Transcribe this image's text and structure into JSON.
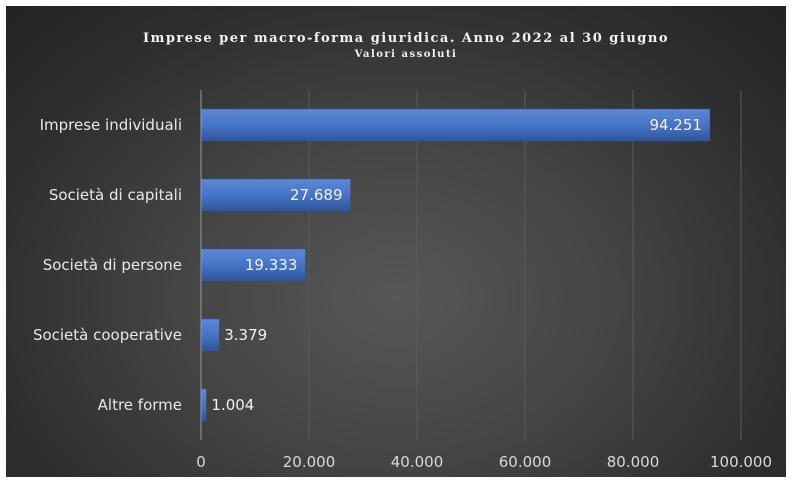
{
  "chart_data": {
    "type": "bar",
    "orientation": "horizontal",
    "title": "Imprese per macro-forma giuridica. Anno 2022 al 30 giugno",
    "subtitle": "Valori assoluti",
    "categories": [
      "Imprese individuali",
      "Società di capitali",
      "Società di persone",
      "Società cooperative",
      "Altre forme"
    ],
    "values": [
      94251,
      27689,
      19333,
      3379,
      1004
    ],
    "value_labels": [
      "94.251",
      "27.689",
      "19.333",
      "3.379",
      "1.004"
    ],
    "xlim": [
      0,
      100000
    ],
    "x_ticks": [
      0,
      20000,
      40000,
      60000,
      80000,
      100000
    ],
    "x_tick_labels": [
      "0",
      "20.000",
      "40.000",
      "60.000",
      "80.000",
      "100.000"
    ],
    "grid": "vertical",
    "legend": "none",
    "colors": {
      "bar": "#4472c4",
      "bar_light": "#5b86d4",
      "bar_dark": "#2f5597",
      "background": "#404040",
      "text": "#e8e8e8",
      "gridline": "#5a5a5a"
    }
  }
}
